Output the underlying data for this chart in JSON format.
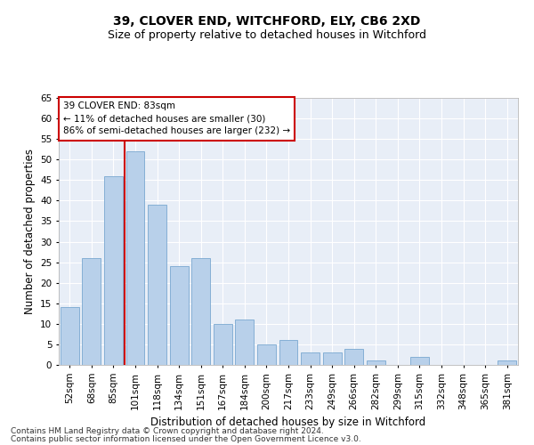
{
  "title1": "39, CLOVER END, WITCHFORD, ELY, CB6 2XD",
  "title2": "Size of property relative to detached houses in Witchford",
  "xlabel": "Distribution of detached houses by size in Witchford",
  "ylabel": "Number of detached properties",
  "categories": [
    "52sqm",
    "68sqm",
    "85sqm",
    "101sqm",
    "118sqm",
    "134sqm",
    "151sqm",
    "167sqm",
    "184sqm",
    "200sqm",
    "217sqm",
    "233sqm",
    "249sqm",
    "266sqm",
    "282sqm",
    "299sqm",
    "315sqm",
    "332sqm",
    "348sqm",
    "365sqm",
    "381sqm"
  ],
  "values": [
    14,
    26,
    46,
    52,
    39,
    24,
    26,
    10,
    11,
    5,
    6,
    3,
    3,
    4,
    1,
    0,
    2,
    0,
    0,
    0,
    1
  ],
  "bar_color": "#b8d0ea",
  "bar_edge_color": "#7aa8d0",
  "vline_x": 2.5,
  "vline_color": "#cc0000",
  "annotation_line1": "39 CLOVER END: 83sqm",
  "annotation_line2": "← 11% of detached houses are smaller (30)",
  "annotation_line3": "86% of semi-detached houses are larger (232) →",
  "annotation_box_color": "#ffffff",
  "annotation_box_edge_color": "#cc0000",
  "ylim": [
    0,
    65
  ],
  "yticks": [
    0,
    5,
    10,
    15,
    20,
    25,
    30,
    35,
    40,
    45,
    50,
    55,
    60,
    65
  ],
  "bg_color": "#e8eef7",
  "footer1": "Contains HM Land Registry data © Crown copyright and database right 2024.",
  "footer2": "Contains public sector information licensed under the Open Government Licence v3.0.",
  "title1_fontsize": 10,
  "title2_fontsize": 9,
  "xlabel_fontsize": 8.5,
  "ylabel_fontsize": 8.5,
  "tick_fontsize": 7.5,
  "annotation_fontsize": 7.5,
  "footer_fontsize": 6.5
}
